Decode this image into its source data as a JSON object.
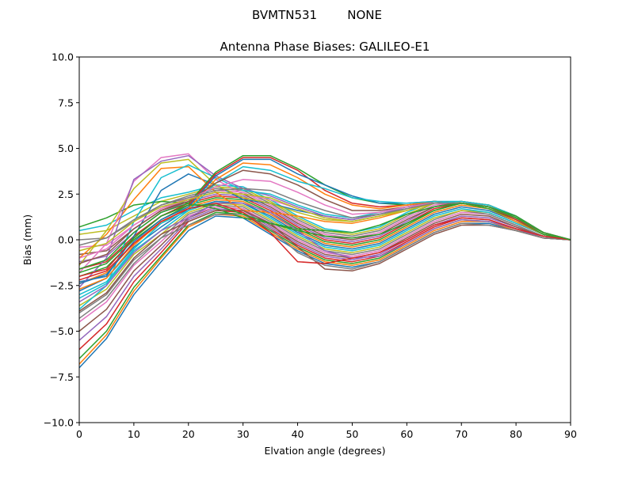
{
  "figure": {
    "suptitle": "BVMTN531        NONE"
  },
  "chart_data": {
    "type": "line",
    "title": "Antenna Phase Biases: GALILEO-E1",
    "xlabel": "Elvation angle (degrees)",
    "ylabel": "Bias (mm)",
    "xlim": [
      0,
      90
    ],
    "ylim": [
      -10,
      10
    ],
    "xticks": [
      0,
      10,
      20,
      30,
      40,
      50,
      60,
      70,
      80,
      90
    ],
    "xtick_labels": [
      "0",
      "10",
      "20",
      "30",
      "40",
      "50",
      "60",
      "70",
      "80",
      "90"
    ],
    "yticks": [
      -10,
      -7.5,
      -5,
      -2.5,
      0,
      2.5,
      5,
      7.5,
      10
    ],
    "ytick_labels": [
      "−10.0",
      "−7.5",
      "−5.0",
      "−2.5",
      "0.0",
      "2.5",
      "5.0",
      "7.5",
      "10.0"
    ],
    "grid": false,
    "legend": "none",
    "x": [
      0,
      5,
      10,
      15,
      20,
      25,
      30,
      35,
      40,
      45,
      50,
      55,
      60,
      65,
      70,
      75,
      80,
      85,
      90
    ],
    "series": [
      {
        "color": "#1f77b4",
        "values": [
          -7.0,
          -5.4,
          -3.0,
          -1.2,
          0.5,
          1.3,
          1.2,
          0.3,
          -0.6,
          -1.3,
          -1.5,
          -1.2,
          -0.4,
          0.4,
          0.9,
          0.9,
          0.5,
          0.1,
          0.0
        ]
      },
      {
        "color": "#ff7f0e",
        "values": [
          -6.8,
          -5.2,
          -2.8,
          -1.0,
          0.7,
          1.4,
          1.3,
          0.4,
          -0.5,
          -1.2,
          -1.4,
          -1.1,
          -0.3,
          0.5,
          1.0,
          1.0,
          0.5,
          0.1,
          0.0
        ]
      },
      {
        "color": "#2ca02c",
        "values": [
          -6.5,
          -5.0,
          -2.6,
          -0.9,
          0.8,
          1.5,
          1.4,
          0.5,
          -0.4,
          -1.1,
          -1.3,
          -1.0,
          -0.2,
          0.6,
          1.1,
          1.0,
          0.6,
          0.1,
          0.0
        ]
      },
      {
        "color": "#d62728",
        "values": [
          -6.0,
          -4.6,
          -2.3,
          -0.7,
          1.0,
          1.6,
          1.5,
          0.6,
          -0.3,
          -1.0,
          -1.2,
          -0.9,
          -0.1,
          0.7,
          1.2,
          1.1,
          0.6,
          0.2,
          0.0
        ]
      },
      {
        "color": "#9467bd",
        "values": [
          -5.5,
          -4.2,
          -2.0,
          -0.5,
          1.1,
          1.7,
          1.6,
          0.7,
          -0.2,
          -0.9,
          -1.1,
          -0.8,
          0.0,
          0.8,
          1.3,
          1.2,
          0.7,
          0.2,
          0.0
        ]
      },
      {
        "color": "#8c564b",
        "values": [
          -5.0,
          -3.8,
          -1.7,
          -0.3,
          1.2,
          1.8,
          1.7,
          0.8,
          -0.1,
          -0.8,
          -1.0,
          -0.7,
          0.1,
          0.9,
          1.4,
          1.3,
          0.7,
          0.2,
          0.0
        ]
      },
      {
        "color": "#e377c2",
        "values": [
          -4.5,
          -3.4,
          -1.4,
          -0.1,
          1.3,
          1.8,
          1.7,
          0.9,
          0.0,
          -0.7,
          -0.9,
          -0.6,
          0.2,
          1.0,
          1.5,
          1.4,
          0.8,
          0.2,
          0.0
        ]
      },
      {
        "color": "#7f7f7f",
        "values": [
          -4.0,
          -3.0,
          -1.1,
          0.1,
          1.4,
          1.9,
          1.8,
          1.0,
          0.1,
          -0.6,
          -0.8,
          -0.5,
          0.3,
          1.1,
          1.6,
          1.4,
          0.8,
          0.2,
          0.0
        ]
      },
      {
        "color": "#bcbd22",
        "values": [
          -3.6,
          -2.7,
          -0.8,
          0.3,
          1.5,
          2.0,
          1.9,
          1.1,
          0.2,
          -0.5,
          -0.7,
          -0.4,
          0.4,
          1.2,
          1.6,
          1.5,
          0.9,
          0.3,
          0.0
        ]
      },
      {
        "color": "#17becf",
        "values": [
          -3.2,
          -2.4,
          -0.6,
          0.5,
          1.6,
          2.1,
          2.0,
          1.2,
          0.3,
          -0.4,
          -0.6,
          -0.3,
          0.5,
          1.3,
          1.7,
          1.5,
          0.9,
          0.3,
          0.0
        ]
      },
      {
        "color": "#1f77b4",
        "values": [
          -2.8,
          -2.1,
          -0.4,
          0.7,
          1.7,
          2.1,
          2.0,
          1.3,
          0.4,
          -0.3,
          -0.5,
          -0.2,
          0.6,
          1.4,
          1.8,
          1.6,
          1.0,
          0.3,
          0.0
        ]
      },
      {
        "color": "#ff7f0e",
        "values": [
          -2.4,
          -1.8,
          -0.2,
          0.9,
          1.8,
          2.2,
          2.1,
          1.4,
          0.5,
          -0.2,
          -0.4,
          -0.1,
          0.7,
          1.5,
          1.9,
          1.7,
          1.0,
          0.3,
          0.0
        ]
      },
      {
        "color": "#2ca02c",
        "values": [
          -2.0,
          -1.5,
          0.0,
          1.1,
          1.9,
          2.3,
          2.2,
          1.5,
          0.6,
          -0.1,
          -0.3,
          0.0,
          0.8,
          1.6,
          2.0,
          1.7,
          1.1,
          0.3,
          0.0
        ]
      },
      {
        "color": "#d62728",
        "values": [
          -1.6,
          -1.2,
          0.2,
          1.3,
          2.0,
          2.4,
          2.3,
          1.6,
          0.7,
          0.0,
          -0.2,
          0.1,
          0.9,
          1.7,
          2.0,
          1.8,
          1.1,
          0.4,
          0.0
        ]
      },
      {
        "color": "#9467bd",
        "values": [
          -1.2,
          -0.9,
          0.4,
          1.5,
          2.1,
          2.5,
          2.4,
          1.7,
          0.8,
          0.1,
          -0.1,
          0.2,
          1.0,
          1.8,
          2.1,
          1.8,
          1.2,
          0.4,
          0.0
        ]
      },
      {
        "color": "#8c564b",
        "values": [
          -0.8,
          -0.6,
          0.6,
          1.6,
          2.2,
          2.6,
          2.5,
          1.8,
          0.9,
          0.2,
          0.0,
          0.3,
          1.1,
          1.8,
          2.1,
          1.9,
          1.2,
          0.4,
          0.0
        ]
      },
      {
        "color": "#e377c2",
        "values": [
          -0.4,
          -0.3,
          0.8,
          1.7,
          2.3,
          2.7,
          2.6,
          1.9,
          1.0,
          0.3,
          0.1,
          0.4,
          1.2,
          1.9,
          2.1,
          1.9,
          1.3,
          0.4,
          0.0
        ]
      },
      {
        "color": "#7f7f7f",
        "values": [
          0.0,
          0.1,
          1.0,
          1.9,
          2.4,
          2.8,
          2.7,
          2.0,
          1.1,
          0.4,
          0.2,
          0.5,
          1.3,
          2.0,
          2.1,
          1.9,
          1.3,
          0.4,
          0.0
        ]
      },
      {
        "color": "#bcbd22",
        "values": [
          0.3,
          0.5,
          1.3,
          2.1,
          2.5,
          2.9,
          2.8,
          2.1,
          1.2,
          0.5,
          0.3,
          0.6,
          1.4,
          2.0,
          2.1,
          1.9,
          1.3,
          0.4,
          0.0
        ]
      },
      {
        "color": "#17becf",
        "values": [
          0.5,
          0.8,
          1.6,
          2.3,
          2.6,
          3.0,
          2.9,
          2.2,
          1.3,
          0.6,
          0.4,
          0.7,
          1.5,
          2.1,
          2.1,
          1.9,
          1.3,
          0.4,
          0.0
        ]
      },
      {
        "color": "#2ca02c",
        "values": [
          0.7,
          1.2,
          1.9,
          2.1,
          2.0,
          1.7,
          1.2,
          0.9,
          0.6,
          0.5,
          0.4,
          0.8,
          1.4,
          1.8,
          2.0,
          1.8,
          1.3,
          0.4,
          0.0
        ]
      },
      {
        "color": "#1f77b4",
        "values": [
          -2.3,
          -2.0,
          0.2,
          2.7,
          3.6,
          3.0,
          2.2,
          2.0,
          1.6,
          1.3,
          1.1,
          1.4,
          1.7,
          2.0,
          2.0,
          1.8,
          1.2,
          0.4,
          0.0
        ]
      },
      {
        "color": "#ff7f0e",
        "values": [
          -1.0,
          0.3,
          2.2,
          3.9,
          4.0,
          2.6,
          1.6,
          1.5,
          1.3,
          1.0,
          0.9,
          1.2,
          1.6,
          2.0,
          2.0,
          1.8,
          1.2,
          0.4,
          0.0
        ]
      },
      {
        "color": "#e377c2",
        "values": [
          -1.8,
          -0.2,
          3.2,
          4.5,
          4.7,
          3.3,
          2.5,
          2.2,
          1.7,
          1.2,
          1.0,
          1.3,
          1.7,
          2.1,
          2.0,
          1.8,
          1.2,
          0.4,
          0.0
        ]
      },
      {
        "color": "#bcbd22",
        "values": [
          -1.4,
          0.5,
          2.8,
          4.2,
          4.4,
          3.0,
          2.3,
          2.0,
          1.5,
          1.1,
          1.0,
          1.3,
          1.6,
          2.0,
          2.0,
          1.8,
          1.2,
          0.4,
          0.0
        ]
      },
      {
        "color": "#9467bd",
        "values": [
          -2.6,
          -1.0,
          3.3,
          4.3,
          4.6,
          3.5,
          2.8,
          2.4,
          1.8,
          1.3,
          1.1,
          1.4,
          1.8,
          2.1,
          2.0,
          1.8,
          1.2,
          0.4,
          0.0
        ]
      },
      {
        "color": "#17becf",
        "values": [
          -3.8,
          -2.5,
          1.0,
          3.4,
          4.1,
          3.4,
          2.7,
          2.5,
          1.9,
          1.4,
          1.2,
          1.5,
          1.8,
          2.0,
          2.0,
          1.8,
          1.2,
          0.4,
          0.0
        ]
      },
      {
        "color": "#2ca02c",
        "values": [
          -1.6,
          -1.1,
          0.4,
          1.5,
          2.0,
          3.7,
          4.6,
          4.6,
          3.9,
          3.0,
          2.3,
          2.0,
          1.9,
          2.1,
          2.0,
          1.8,
          1.2,
          0.4,
          0.0
        ]
      },
      {
        "color": "#d62728",
        "values": [
          -2.0,
          -1.6,
          0.1,
          1.3,
          1.9,
          3.6,
          4.5,
          4.5,
          3.8,
          2.7,
          2.0,
          1.8,
          1.9,
          2.1,
          2.0,
          1.8,
          1.2,
          0.4,
          0.0
        ]
      },
      {
        "color": "#1f77b4",
        "values": [
          -2.4,
          -1.9,
          -0.1,
          1.1,
          1.8,
          3.5,
          4.4,
          4.4,
          3.6,
          3.0,
          2.4,
          2.0,
          2.0,
          2.1,
          2.0,
          1.8,
          1.2,
          0.4,
          0.0
        ]
      },
      {
        "color": "#ff7f0e",
        "values": [
          -2.7,
          -2.1,
          -0.3,
          1.0,
          1.7,
          3.3,
          4.2,
          4.1,
          3.4,
          2.5,
          1.9,
          1.7,
          1.9,
          2.1,
          2.0,
          1.8,
          1.2,
          0.4,
          0.0
        ]
      },
      {
        "color": "#17becf",
        "values": [
          -3.0,
          -2.3,
          -0.5,
          0.9,
          1.6,
          3.1,
          4.0,
          3.8,
          3.2,
          2.8,
          2.3,
          2.1,
          2.0,
          2.1,
          2.0,
          1.8,
          1.2,
          0.4,
          0.0
        ]
      },
      {
        "color": "#8c564b",
        "values": [
          -1.3,
          -0.8,
          0.6,
          1.6,
          2.1,
          3.1,
          3.8,
          3.6,
          3.0,
          2.2,
          1.6,
          1.6,
          1.8,
          2.0,
          2.0,
          1.8,
          1.2,
          0.4,
          0.0
        ]
      },
      {
        "color": "#e377c2",
        "values": [
          -1.0,
          -0.5,
          0.8,
          1.7,
          2.2,
          2.9,
          3.3,
          3.2,
          2.6,
          1.9,
          1.4,
          1.5,
          1.8,
          2.0,
          2.0,
          1.8,
          1.2,
          0.4,
          0.0
        ]
      },
      {
        "color": "#bcbd22",
        "values": [
          -0.6,
          -0.2,
          1.0,
          1.8,
          2.2,
          2.6,
          2.5,
          2.3,
          1.7,
          1.2,
          1.0,
          1.3,
          1.7,
          2.0,
          2.0,
          1.8,
          1.2,
          0.4,
          0.0
        ]
      },
      {
        "color": "#7f7f7f",
        "values": [
          -0.3,
          0.1,
          1.1,
          1.9,
          2.3,
          2.7,
          2.8,
          2.7,
          2.1,
          1.6,
          1.2,
          1.4,
          1.7,
          2.0,
          2.0,
          1.8,
          1.2,
          0.4,
          0.0
        ]
      },
      {
        "color": "#9467bd",
        "values": [
          -3.4,
          -2.5,
          -0.7,
          0.5,
          1.2,
          2.0,
          2.0,
          1.5,
          0.5,
          -0.6,
          -1.0,
          -0.9,
          -0.2,
          0.6,
          1.1,
          1.0,
          0.6,
          0.1,
          0.0
        ]
      },
      {
        "color": "#8c564b",
        "values": [
          -3.9,
          -2.9,
          -1.0,
          0.3,
          1.0,
          1.6,
          1.6,
          0.9,
          -0.4,
          -1.6,
          -1.7,
          -1.3,
          -0.5,
          0.3,
          0.8,
          0.8,
          0.5,
          0.1,
          0.0
        ]
      },
      {
        "color": "#7f7f7f",
        "values": [
          -4.3,
          -3.2,
          -1.3,
          0.1,
          0.8,
          1.4,
          1.4,
          0.6,
          -0.7,
          -1.4,
          -1.6,
          -1.2,
          -0.4,
          0.4,
          0.9,
          0.8,
          0.5,
          0.1,
          0.0
        ]
      },
      {
        "color": "#d62728",
        "values": [
          -2.2,
          -1.7,
          -0.2,
          1.0,
          1.7,
          2.0,
          1.5,
          0.4,
          -1.2,
          -1.3,
          -1.0,
          -0.7,
          0.0,
          0.8,
          1.2,
          1.1,
          0.6,
          0.2,
          0.0
        ]
      },
      {
        "color": "#2ca02c",
        "values": [
          -1.8,
          -1.3,
          0.1,
          1.3,
          1.9,
          1.9,
          1.4,
          0.9,
          0.5,
          0.2,
          0.1,
          0.3,
          0.9,
          1.6,
          2.0,
          1.8,
          1.2,
          0.4,
          0.0
        ]
      }
    ]
  }
}
